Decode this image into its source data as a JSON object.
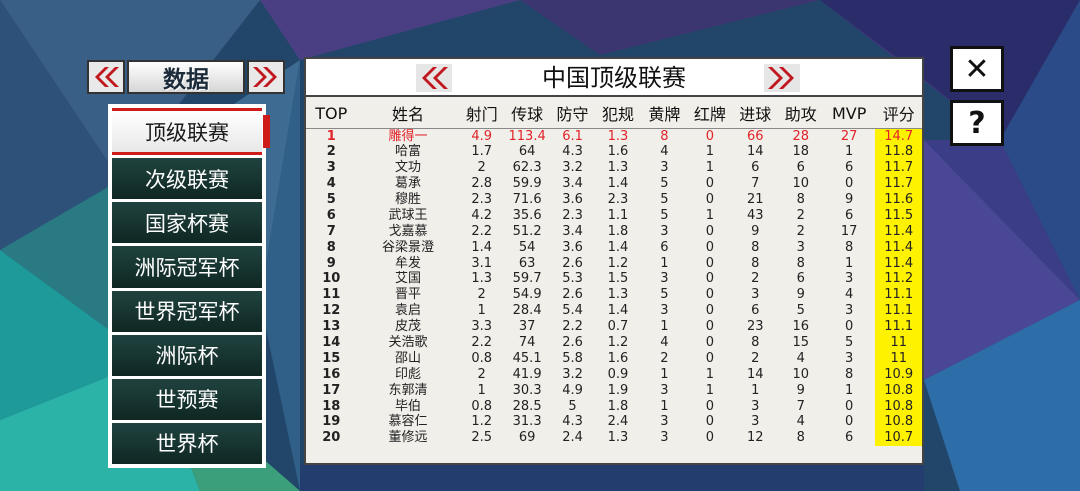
{
  "nav": {
    "category_title": "数据",
    "prev_icon": "double-chevron-left-icon",
    "next_icon": "double-chevron-right-icon"
  },
  "menu": {
    "items": [
      {
        "label": "顶级联赛",
        "active": true
      },
      {
        "label": "次级联赛",
        "active": false
      },
      {
        "label": "国家杯赛",
        "active": false
      },
      {
        "label": "洲际冠军杯",
        "active": false
      },
      {
        "label": "世界冠军杯",
        "active": false
      },
      {
        "label": "洲际杯",
        "active": false
      },
      {
        "label": "世预赛",
        "active": false
      },
      {
        "label": "世界杯",
        "active": false
      }
    ]
  },
  "buttons": {
    "close": "✕",
    "help": "?"
  },
  "panel": {
    "title": "中国顶级联赛",
    "columns": [
      "TOP",
      "姓名",
      "射门",
      "传球",
      "防守",
      "犯规",
      "黄牌",
      "红牌",
      "进球",
      "助攻",
      "MVP",
      "评分"
    ],
    "rows": [
      [
        "1",
        "雕得一",
        "4.9",
        "113.4",
        "6.1",
        "1.3",
        "8",
        "0",
        "66",
        "28",
        "27",
        "14.7"
      ],
      [
        "2",
        "哈富",
        "1.7",
        "64",
        "4.3",
        "1.6",
        "4",
        "1",
        "14",
        "18",
        "1",
        "11.8"
      ],
      [
        "3",
        "文功",
        "2",
        "62.3",
        "3.2",
        "1.3",
        "3",
        "1",
        "6",
        "6",
        "6",
        "11.7"
      ],
      [
        "4",
        "葛承",
        "2.8",
        "59.9",
        "3.4",
        "1.4",
        "5",
        "0",
        "7",
        "10",
        "0",
        "11.7"
      ],
      [
        "5",
        "穆胜",
        "2.3",
        "71.6",
        "3.6",
        "2.3",
        "5",
        "0",
        "21",
        "8",
        "9",
        "11.6"
      ],
      [
        "6",
        "武球王",
        "4.2",
        "35.6",
        "2.3",
        "1.1",
        "5",
        "1",
        "43",
        "2",
        "6",
        "11.5"
      ],
      [
        "7",
        "戈嘉慕",
        "2.2",
        "51.2",
        "3.4",
        "1.8",
        "3",
        "0",
        "9",
        "2",
        "17",
        "11.4"
      ],
      [
        "8",
        "谷梁景澄",
        "1.4",
        "54",
        "3.6",
        "1.4",
        "6",
        "0",
        "8",
        "3",
        "8",
        "11.4"
      ],
      [
        "9",
        "牟发",
        "3.1",
        "63",
        "2.6",
        "1.2",
        "1",
        "0",
        "8",
        "8",
        "1",
        "11.4"
      ],
      [
        "10",
        "艾国",
        "1.3",
        "59.7",
        "5.3",
        "1.5",
        "3",
        "0",
        "2",
        "6",
        "3",
        "11.2"
      ],
      [
        "11",
        "晋平",
        "2",
        "54.9",
        "2.6",
        "1.3",
        "5",
        "0",
        "3",
        "9",
        "4",
        "11.1"
      ],
      [
        "12",
        "袁启",
        "1",
        "28.4",
        "5.4",
        "1.4",
        "3",
        "0",
        "6",
        "5",
        "3",
        "11.1"
      ],
      [
        "13",
        "皮茂",
        "3.3",
        "37",
        "2.2",
        "0.7",
        "1",
        "0",
        "23",
        "16",
        "0",
        "11.1"
      ],
      [
        "14",
        "关浩歌",
        "2.2",
        "74",
        "2.6",
        "1.2",
        "4",
        "0",
        "8",
        "15",
        "5",
        "11"
      ],
      [
        "15",
        "邵山",
        "0.8",
        "45.1",
        "5.8",
        "1.6",
        "2",
        "0",
        "2",
        "4",
        "3",
        "11"
      ],
      [
        "16",
        "印彪",
        "2",
        "41.9",
        "3.2",
        "0.9",
        "1",
        "1",
        "14",
        "10",
        "8",
        "10.9"
      ],
      [
        "17",
        "东郭清",
        "1",
        "30.3",
        "4.9",
        "1.9",
        "3",
        "1",
        "1",
        "9",
        "1",
        "10.8"
      ],
      [
        "18",
        "毕伯",
        "0.8",
        "28.5",
        "5",
        "1.8",
        "1",
        "0",
        "3",
        "7",
        "0",
        "10.8"
      ],
      [
        "19",
        "慕容仁",
        "1.2",
        "31.3",
        "4.3",
        "2.4",
        "3",
        "0",
        "3",
        "4",
        "0",
        "10.8"
      ],
      [
        "20",
        "董修远",
        "2.5",
        "69",
        "2.4",
        "1.3",
        "3",
        "0",
        "12",
        "8",
        "6",
        "10.7"
      ]
    ]
  },
  "colors": {
    "highlight_text": "#e0242a",
    "rating_bg": "#fff200",
    "menu_bg": "#163430",
    "arrow_red": "#c0181e"
  }
}
